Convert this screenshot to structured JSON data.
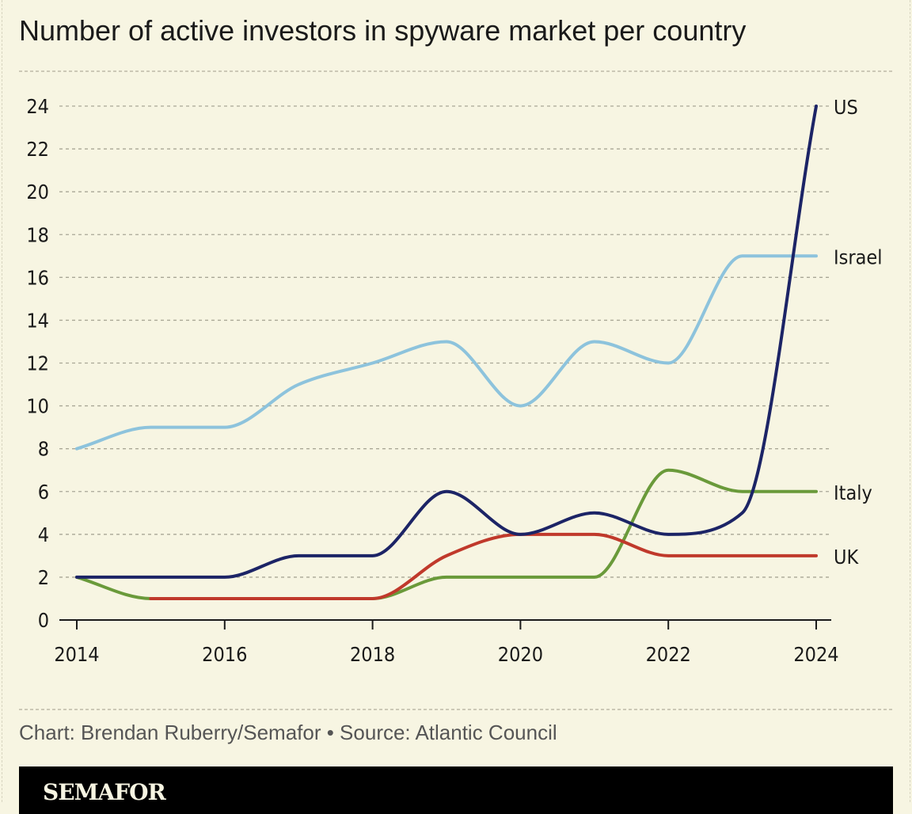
{
  "chart_data": {
    "type": "line",
    "title": "Number of active investors in spyware market per country",
    "xlabel": "",
    "ylabel": "",
    "x": [
      2014,
      2015,
      2016,
      2017,
      2018,
      2019,
      2020,
      2021,
      2022,
      2023,
      2024
    ],
    "x_ticks": [
      "2014",
      "2016",
      "2018",
      "2020",
      "2022",
      "2024"
    ],
    "y_ticks": [
      "0",
      "2",
      "4",
      "6",
      "8",
      "10",
      "12",
      "14",
      "16",
      "18",
      "20",
      "22",
      "24"
    ],
    "ylim": [
      0,
      24
    ],
    "xlim": [
      2014,
      2024
    ],
    "grid": "horizontal dashed",
    "legend": "direct labels at right end",
    "series": [
      {
        "name": "Israel",
        "color": "#8dc3dc",
        "values": [
          8,
          9,
          9,
          11,
          12,
          13,
          10,
          13,
          12,
          17,
          17
        ]
      },
      {
        "name": "Italy",
        "color": "#6a9a3a",
        "values": [
          2,
          1,
          1,
          1,
          1,
          2,
          2,
          2,
          7,
          6,
          6
        ]
      },
      {
        "name": "UK",
        "color": "#c0392b",
        "values": [
          null,
          1,
          1,
          1,
          1,
          3,
          4,
          4,
          3,
          3,
          3
        ]
      },
      {
        "name": "US",
        "color": "#1c2466",
        "values": [
          2,
          2,
          2,
          3,
          3,
          6,
          4,
          5,
          4,
          5,
          24
        ]
      }
    ]
  },
  "footer": {
    "credit": "Chart: Brendan Ruberry/Semafor • Source: Atlantic Council",
    "logo": "SEMAFOR"
  }
}
